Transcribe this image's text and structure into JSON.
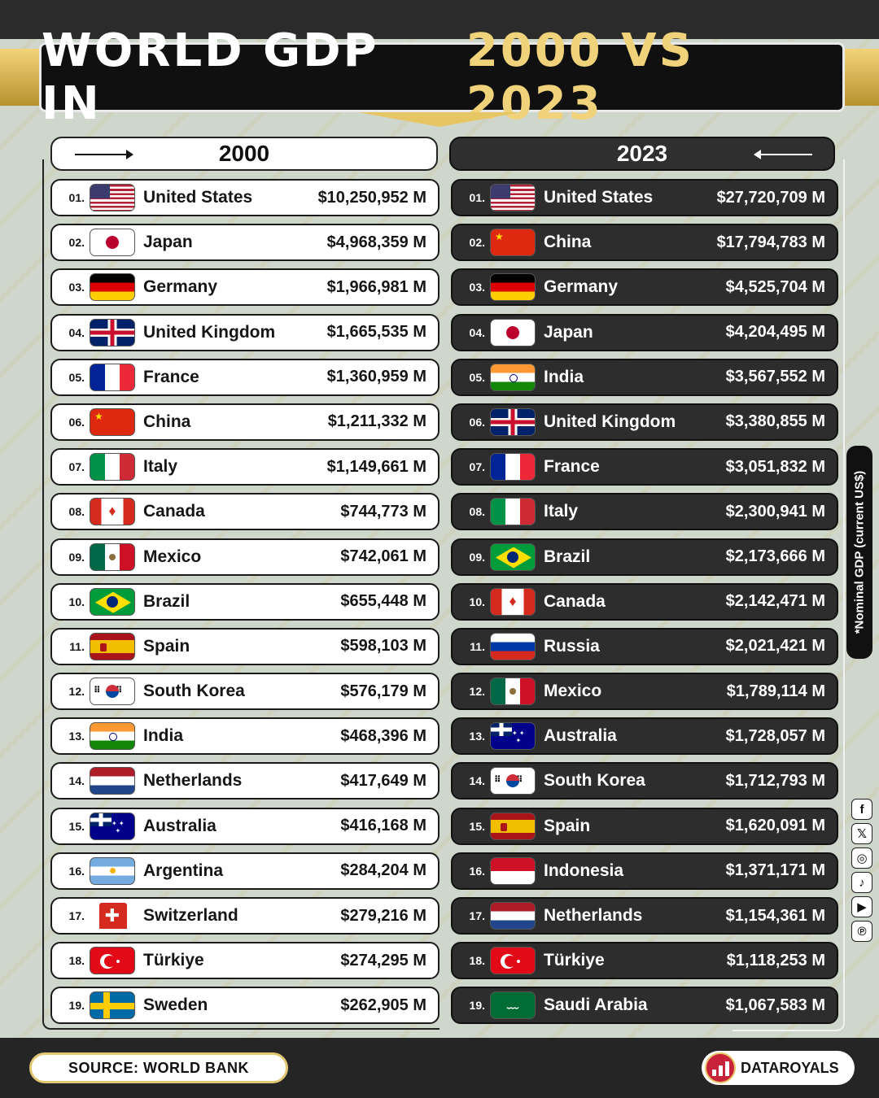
{
  "title": {
    "part1": "WORLD GDP IN",
    "part2": "2000 VS 2023"
  },
  "year_left": "2000",
  "year_right": "2023",
  "note": "*Nominal GDP (current US$)",
  "source": "SOURCE: WORLD BANK",
  "brand": "DATAROYALS",
  "colors": {
    "accent_gold": "#f0d27a",
    "dark": "#2d2d2d",
    "light": "#ffffff",
    "background": "#cfd7cc"
  },
  "socials": [
    "facebook-icon",
    "x-icon",
    "instagram-icon",
    "tiktok-icon",
    "youtube-icon",
    "pinterest-icon"
  ],
  "rank_2000": [
    {
      "rank": "01.",
      "country": "United States",
      "flag": "us",
      "value": "$10,250,952 M"
    },
    {
      "rank": "02.",
      "country": "Japan",
      "flag": "jp",
      "value": "$4,968,359 M"
    },
    {
      "rank": "03.",
      "country": "Germany",
      "flag": "de",
      "value": "$1,966,981 M"
    },
    {
      "rank": "04.",
      "country": "United Kingdom",
      "flag": "gb",
      "value": "$1,665,535 M"
    },
    {
      "rank": "05.",
      "country": "France",
      "flag": "fr",
      "value": "$1,360,959 M"
    },
    {
      "rank": "06.",
      "country": "China",
      "flag": "cn",
      "value": "$1,211,332 M"
    },
    {
      "rank": "07.",
      "country": "Italy",
      "flag": "it",
      "value": "$1,149,661 M"
    },
    {
      "rank": "08.",
      "country": "Canada",
      "flag": "ca",
      "value": "$744,773 M"
    },
    {
      "rank": "09.",
      "country": "Mexico",
      "flag": "mx",
      "value": "$742,061 M"
    },
    {
      "rank": "10.",
      "country": "Brazil",
      "flag": "br",
      "value": "$655,448 M"
    },
    {
      "rank": "11.",
      "country": "Spain",
      "flag": "es",
      "value": "$598,103 M"
    },
    {
      "rank": "12.",
      "country": "South Korea",
      "flag": "kr",
      "value": "$576,179 M"
    },
    {
      "rank": "13.",
      "country": "India",
      "flag": "in",
      "value": "$468,396 M"
    },
    {
      "rank": "14.",
      "country": "Netherlands",
      "flag": "nl",
      "value": "$417,649 M"
    },
    {
      "rank": "15.",
      "country": "Australia",
      "flag": "au",
      "value": "$416,168 M"
    },
    {
      "rank": "16.",
      "country": "Argentina",
      "flag": "ar",
      "value": "$284,204 M"
    },
    {
      "rank": "17.",
      "country": "Switzerland",
      "flag": "ch",
      "value": "$279,216 M"
    },
    {
      "rank": "18.",
      "country": "Türkiye",
      "flag": "tr",
      "value": "$274,295 M"
    },
    {
      "rank": "19.",
      "country": "Sweden",
      "flag": "se",
      "value": "$262,905 M"
    }
  ],
  "rank_2023": [
    {
      "rank": "01.",
      "country": "United States",
      "flag": "us",
      "value": "$27,720,709 M"
    },
    {
      "rank": "02.",
      "country": "China",
      "flag": "cn",
      "value": "$17,794,783 M"
    },
    {
      "rank": "03.",
      "country": "Germany",
      "flag": "de",
      "value": "$4,525,704 M"
    },
    {
      "rank": "04.",
      "country": "Japan",
      "flag": "jp",
      "value": "$4,204,495 M"
    },
    {
      "rank": "05.",
      "country": "India",
      "flag": "in",
      "value": "$3,567,552 M"
    },
    {
      "rank": "06.",
      "country": "United Kingdom",
      "flag": "gb",
      "value": "$3,380,855 M"
    },
    {
      "rank": "07.",
      "country": "France",
      "flag": "fr",
      "value": "$3,051,832 M"
    },
    {
      "rank": "08.",
      "country": "Italy",
      "flag": "it",
      "value": "$2,300,941 M"
    },
    {
      "rank": "09.",
      "country": "Brazil",
      "flag": "br",
      "value": "$2,173,666 M"
    },
    {
      "rank": "10.",
      "country": "Canada",
      "flag": "ca",
      "value": "$2,142,471 M"
    },
    {
      "rank": "11.",
      "country": "Russia",
      "flag": "ru",
      "value": "$2,021,421 M"
    },
    {
      "rank": "12.",
      "country": "Mexico",
      "flag": "mx",
      "value": "$1,789,114 M"
    },
    {
      "rank": "13.",
      "country": "Australia",
      "flag": "au",
      "value": "$1,728,057 M"
    },
    {
      "rank": "14.",
      "country": "South Korea",
      "flag": "kr",
      "value": "$1,712,793 M"
    },
    {
      "rank": "15.",
      "country": "Spain",
      "flag": "es",
      "value": "$1,620,091 M"
    },
    {
      "rank": "16.",
      "country": "Indonesia",
      "flag": "id",
      "value": "$1,371,171 M"
    },
    {
      "rank": "17.",
      "country": "Netherlands",
      "flag": "nl",
      "value": "$1,154,361 M"
    },
    {
      "rank": "18.",
      "country": "Türkiye",
      "flag": "tr",
      "value": "$1,118,253 M"
    },
    {
      "rank": "19.",
      "country": "Saudi Arabia",
      "flag": "sa",
      "value": "$1,067,583 M"
    }
  ]
}
